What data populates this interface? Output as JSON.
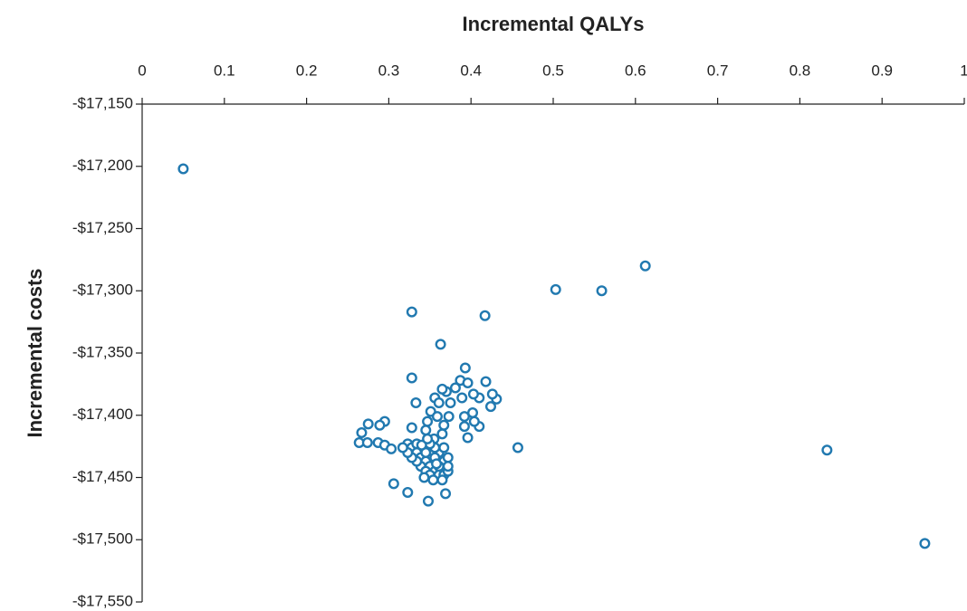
{
  "chart_data": {
    "type": "scatter",
    "title": "Incremental QALYs",
    "y_label": "Incremental costs",
    "color": "#2179b0",
    "xlim": [
      0,
      1
    ],
    "xticks": [
      0,
      0.1,
      0.2,
      0.3,
      0.4,
      0.5,
      0.6,
      0.7,
      0.8,
      0.9,
      1
    ],
    "ylim": [
      -17150,
      -17550
    ],
    "yticks": [
      {
        "value": -17150,
        "label": "-$17,150"
      },
      {
        "value": -17200,
        "label": "-$17,200"
      },
      {
        "value": -17250,
        "label": "-$17,250"
      },
      {
        "value": -17300,
        "label": "-$17,300"
      },
      {
        "value": -17350,
        "label": "-$17,350"
      },
      {
        "value": -17400,
        "label": "-$17,400"
      },
      {
        "value": -17450,
        "label": "-$17,450"
      },
      {
        "value": -17500,
        "label": "-$17,500"
      },
      {
        "value": -17550,
        "label": "-$17,550"
      }
    ],
    "x": [
      0.05,
      0.612,
      0.503,
      0.559,
      0.328,
      0.417,
      0.363,
      0.833,
      0.952,
      0.457,
      0.328,
      0.393,
      0.418,
      0.333,
      0.275,
      0.295,
      0.289,
      0.267,
      0.264,
      0.274,
      0.287,
      0.295,
      0.303,
      0.306,
      0.323,
      0.348,
      0.369,
      0.328,
      0.424,
      0.431,
      0.426,
      0.41,
      0.403,
      0.41,
      0.404,
      0.396,
      0.392,
      0.402,
      0.392,
      0.387,
      0.396,
      0.381,
      0.37,
      0.365,
      0.356,
      0.351,
      0.347,
      0.345,
      0.367,
      0.373,
      0.359,
      0.361,
      0.375,
      0.389,
      0.355,
      0.365,
      0.323,
      0.328,
      0.334,
      0.339,
      0.345,
      0.35,
      0.356,
      0.361,
      0.367,
      0.372,
      0.367,
      0.361,
      0.356,
      0.35,
      0.345,
      0.339,
      0.334,
      0.345,
      0.35,
      0.356,
      0.372,
      0.372,
      0.367,
      0.361,
      0.328,
      0.323,
      0.317,
      0.334,
      0.34,
      0.347,
      0.343,
      0.354,
      0.365,
      0.358
    ],
    "values": [
      -17202,
      -17280,
      -17299,
      -17300,
      -17317,
      -17320,
      -17343,
      -17428,
      -17503,
      -17426,
      -17370,
      -17362,
      -17373,
      -17390,
      -17407,
      -17405,
      -17408,
      -17414,
      -17422,
      -17422,
      -17422,
      -17424,
      -17427,
      -17455,
      -17462,
      -17469,
      -17463,
      -17410,
      -17393,
      -17387,
      -17383,
      -17386,
      -17383,
      -17409,
      -17405,
      -17418,
      -17409,
      -17398,
      -17401,
      -17372,
      -17374,
      -17378,
      -17381,
      -17379,
      -17386,
      -17397,
      -17405,
      -17412,
      -17408,
      -17401,
      -17401,
      -17390,
      -17390,
      -17386,
      -17419,
      -17415,
      -17423,
      -17426,
      -17430,
      -17434,
      -17437,
      -17441,
      -17445,
      -17448,
      -17448,
      -17445,
      -17437,
      -17430,
      -17426,
      -17423,
      -17430,
      -17441,
      -17437,
      -17445,
      -17448,
      -17434,
      -17434,
      -17441,
      -17426,
      -17441,
      -17434,
      -17430,
      -17426,
      -17423,
      -17424,
      -17419,
      -17450,
      -17452,
      -17452,
      -17439
    ]
  }
}
